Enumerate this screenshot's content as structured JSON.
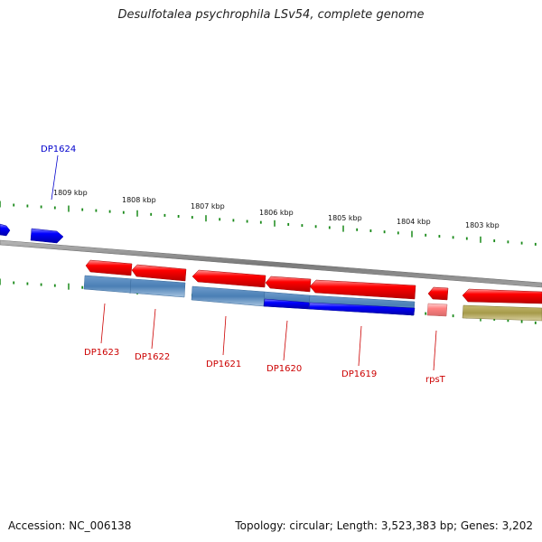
{
  "title": "Desulfotalea psychrophila LSv54, complete genome",
  "footer": {
    "accession": "Accession: NC_006138",
    "summary": "Topology: circular; Length: 3,523,383 bp; Genes: 3,202"
  },
  "scale": {
    "ticks": [
      "1809 kbp",
      "1808 kbp",
      "1807 kbp",
      "1806 kbp",
      "1805 kbp",
      "1804 kbp",
      "1803 kbp"
    ]
  },
  "genes": [
    {
      "label": "DP1624",
      "strand": "forward",
      "color": "#0000ff"
    },
    {
      "label": "DP1623",
      "strand": "reverse",
      "color": "#ff0000"
    },
    {
      "label": "DP1622",
      "strand": "reverse",
      "color": "#ff0000"
    },
    {
      "label": "DP1621",
      "strand": "reverse",
      "color": "#ff0000"
    },
    {
      "label": "DP1620",
      "strand": "reverse",
      "color": "#ff0000"
    },
    {
      "label": "DP1619",
      "strand": "reverse",
      "color": "#ff0000"
    },
    {
      "label": "rpsT",
      "strand": "reverse",
      "color": "#ff6666"
    }
  ],
  "colors": {
    "forward_gene": "#0000ff",
    "reverse_gene": "#ff0000",
    "rna_gene": "#ff8080",
    "backbone": "#8a8a8a",
    "tick": "#1a8a1a",
    "feature_blue": "#4a7fb5",
    "feature_olive": "#a69a4a"
  }
}
